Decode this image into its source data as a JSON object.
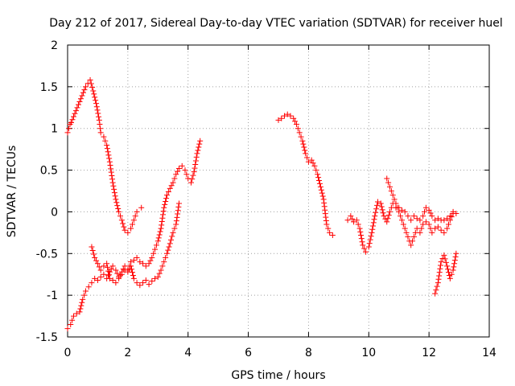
{
  "chart_data": {
    "type": "scatter",
    "title": "Day 212 of 2017, Sidereal Day-to-day VTEC variation (SDTVAR) for receiver huel",
    "xlabel": "GPS time / hours",
    "ylabel": "SDTVAR / TECUs",
    "xlim": [
      0,
      14
    ],
    "ylim": [
      -1.5,
      2
    ],
    "x_ticks": [
      0,
      2,
      4,
      6,
      8,
      10,
      12,
      14
    ],
    "y_ticks": [
      -1.5,
      -1,
      -0.5,
      0,
      0.5,
      1,
      1.5,
      2
    ],
    "x_tick_labels": [
      "0",
      "2",
      "4",
      "6",
      "8",
      "10",
      "12",
      "14"
    ],
    "y_tick_labels": [
      "-1.5",
      "-1",
      "-0.5",
      "0",
      "0.5",
      "1",
      "1.5",
      "2"
    ],
    "grid": true,
    "marker": "plus",
    "color": "#ff0000",
    "series": [
      {
        "name": "segment-a-upper",
        "points": [
          [
            0.0,
            0.95
          ],
          [
            0.08,
            1.05
          ],
          [
            0.12,
            1.07
          ],
          [
            0.6,
            1.5
          ],
          [
            0.75,
            1.58
          ],
          [
            0.85,
            1.45
          ],
          [
            0.95,
            1.3
          ],
          [
            1.05,
            1.1
          ],
          [
            1.1,
            0.95
          ],
          [
            1.2,
            0.9
          ],
          [
            1.3,
            0.8
          ],
          [
            1.4,
            0.6
          ],
          [
            1.5,
            0.35
          ],
          [
            1.6,
            0.15
          ],
          [
            1.7,
            0.0
          ],
          [
            1.8,
            -0.1
          ],
          [
            1.9,
            -0.22
          ],
          [
            2.0,
            -0.25
          ],
          [
            2.1,
            -0.2
          ],
          [
            2.2,
            -0.1
          ],
          [
            2.3,
            0.0
          ],
          [
            2.45,
            0.05
          ]
        ]
      },
      {
        "name": "segment-a-lower",
        "points": [
          [
            0.0,
            -1.4
          ],
          [
            0.1,
            -1.35
          ],
          [
            0.2,
            -1.25
          ],
          [
            0.3,
            -1.22
          ],
          [
            0.4,
            -1.2
          ],
          [
            0.5,
            -1.05
          ],
          [
            0.6,
            -0.95
          ],
          [
            0.7,
            -0.9
          ],
          [
            0.8,
            -0.85
          ],
          [
            0.9,
            -0.8
          ],
          [
            1.0,
            -0.82
          ],
          [
            1.1,
            -0.78
          ],
          [
            1.2,
            -0.75
          ],
          [
            1.3,
            -0.8
          ],
          [
            1.4,
            -0.72
          ],
          [
            1.5,
            -0.65
          ],
          [
            1.6,
            -0.7
          ],
          [
            1.7,
            -0.78
          ],
          [
            1.8,
            -0.75
          ],
          [
            1.9,
            -0.7
          ],
          [
            2.0,
            -0.72
          ],
          [
            2.1,
            -0.65
          ],
          [
            2.2,
            -0.8
          ],
          [
            2.3,
            -0.85
          ],
          [
            2.4,
            -0.88
          ],
          [
            2.5,
            -0.85
          ],
          [
            2.6,
            -0.82
          ],
          [
            2.7,
            -0.87
          ],
          [
            2.8,
            -0.83
          ],
          [
            2.9,
            -0.8
          ],
          [
            3.0,
            -0.78
          ],
          [
            3.1,
            -0.7
          ],
          [
            3.2,
            -0.6
          ],
          [
            3.3,
            -0.5
          ],
          [
            3.4,
            -0.38
          ],
          [
            3.5,
            -0.25
          ],
          [
            3.6,
            -0.15
          ],
          [
            3.7,
            0.1
          ]
        ]
      },
      {
        "name": "segment-a-middle",
        "points": [
          [
            0.8,
            -0.42
          ],
          [
            0.9,
            -0.55
          ],
          [
            1.0,
            -0.62
          ],
          [
            1.1,
            -0.7
          ],
          [
            1.2,
            -0.65
          ],
          [
            1.3,
            -0.62
          ],
          [
            1.4,
            -0.8
          ],
          [
            1.5,
            -0.82
          ],
          [
            1.6,
            -0.85
          ],
          [
            1.7,
            -0.8
          ],
          [
            1.8,
            -0.72
          ],
          [
            1.9,
            -0.65
          ],
          [
            2.0,
            -0.7
          ],
          [
            2.1,
            -0.6
          ],
          [
            2.2,
            -0.58
          ],
          [
            2.3,
            -0.55
          ],
          [
            2.4,
            -0.6
          ],
          [
            2.5,
            -0.62
          ],
          [
            2.6,
            -0.65
          ],
          [
            2.7,
            -0.62
          ],
          [
            2.8,
            -0.55
          ],
          [
            2.9,
            -0.45
          ],
          [
            3.0,
            -0.35
          ],
          [
            3.1,
            -0.2
          ],
          [
            3.2,
            0.05
          ],
          [
            3.3,
            0.2
          ],
          [
            3.4,
            0.28
          ],
          [
            3.5,
            0.35
          ],
          [
            3.6,
            0.45
          ],
          [
            3.7,
            0.52
          ],
          [
            3.8,
            0.55
          ],
          [
            3.9,
            0.5
          ],
          [
            4.0,
            0.4
          ],
          [
            4.1,
            0.35
          ],
          [
            4.2,
            0.48
          ],
          [
            4.3,
            0.7
          ],
          [
            4.4,
            0.85
          ]
        ]
      },
      {
        "name": "segment-b",
        "points": [
          [
            7.0,
            1.1
          ],
          [
            7.1,
            1.12
          ],
          [
            7.2,
            1.15
          ],
          [
            7.3,
            1.17
          ],
          [
            7.4,
            1.15
          ],
          [
            7.5,
            1.12
          ],
          [
            7.6,
            1.05
          ],
          [
            7.7,
            0.95
          ],
          [
            7.8,
            0.85
          ],
          [
            7.9,
            0.7
          ],
          [
            8.0,
            0.6
          ],
          [
            8.1,
            0.62
          ],
          [
            8.2,
            0.55
          ],
          [
            8.3,
            0.45
          ],
          [
            8.4,
            0.3
          ],
          [
            8.5,
            0.15
          ],
          [
            8.6,
            -0.15
          ],
          [
            8.7,
            -0.25
          ],
          [
            8.8,
            -0.28
          ]
        ]
      },
      {
        "name": "segment-c-upper",
        "points": [
          [
            9.3,
            -0.1
          ],
          [
            9.4,
            -0.05
          ],
          [
            9.5,
            -0.12
          ],
          [
            9.6,
            -0.1
          ],
          [
            9.7,
            -0.2
          ],
          [
            9.8,
            -0.4
          ],
          [
            9.9,
            -0.48
          ],
          [
            10.0,
            -0.42
          ],
          [
            10.1,
            -0.25
          ],
          [
            10.2,
            -0.05
          ],
          [
            10.3,
            0.12
          ],
          [
            10.4,
            0.1
          ],
          [
            10.5,
            -0.05
          ],
          [
            10.6,
            -0.12
          ],
          [
            10.7,
            0.0
          ],
          [
            10.8,
            0.1
          ],
          [
            10.9,
            0.05
          ],
          [
            11.0,
            0.05
          ],
          [
            11.1,
            0.02
          ],
          [
            11.2,
            0.0
          ],
          [
            11.3,
            -0.05
          ],
          [
            11.4,
            -0.1
          ],
          [
            11.5,
            -0.05
          ],
          [
            11.6,
            -0.08
          ],
          [
            11.7,
            -0.1
          ],
          [
            11.8,
            -0.05
          ],
          [
            11.9,
            0.05
          ],
          [
            12.0,
            0.02
          ],
          [
            12.1,
            -0.05
          ],
          [
            12.2,
            -0.1
          ],
          [
            12.3,
            -0.08
          ],
          [
            12.4,
            -0.1
          ],
          [
            12.5,
            -0.1
          ],
          [
            12.6,
            -0.08
          ],
          [
            12.7,
            -0.05
          ],
          [
            12.8,
            0.0
          ],
          [
            12.9,
            -0.02
          ]
        ]
      },
      {
        "name": "segment-c-middle",
        "points": [
          [
            10.6,
            0.4
          ],
          [
            10.7,
            0.3
          ],
          [
            10.8,
            0.2
          ],
          [
            10.9,
            0.1
          ],
          [
            11.0,
            0.0
          ],
          [
            11.1,
            -0.1
          ],
          [
            11.2,
            -0.2
          ],
          [
            11.3,
            -0.3
          ],
          [
            11.4,
            -0.4
          ],
          [
            11.5,
            -0.3
          ],
          [
            11.6,
            -0.2
          ],
          [
            11.7,
            -0.25
          ],
          [
            11.8,
            -0.15
          ],
          [
            11.9,
            -0.12
          ],
          [
            12.0,
            -0.15
          ],
          [
            12.1,
            -0.25
          ],
          [
            12.2,
            -0.2
          ],
          [
            12.3,
            -0.18
          ],
          [
            12.4,
            -0.22
          ],
          [
            12.5,
            -0.25
          ],
          [
            12.6,
            -0.2
          ],
          [
            12.7,
            -0.1
          ],
          [
            12.8,
            -0.02
          ]
        ]
      },
      {
        "name": "segment-c-lower",
        "points": [
          [
            12.2,
            -0.98
          ],
          [
            12.3,
            -0.85
          ],
          [
            12.4,
            -0.6
          ],
          [
            12.5,
            -0.52
          ],
          [
            12.6,
            -0.65
          ],
          [
            12.7,
            -0.8
          ],
          [
            12.8,
            -0.7
          ],
          [
            12.9,
            -0.5
          ]
        ]
      }
    ]
  }
}
